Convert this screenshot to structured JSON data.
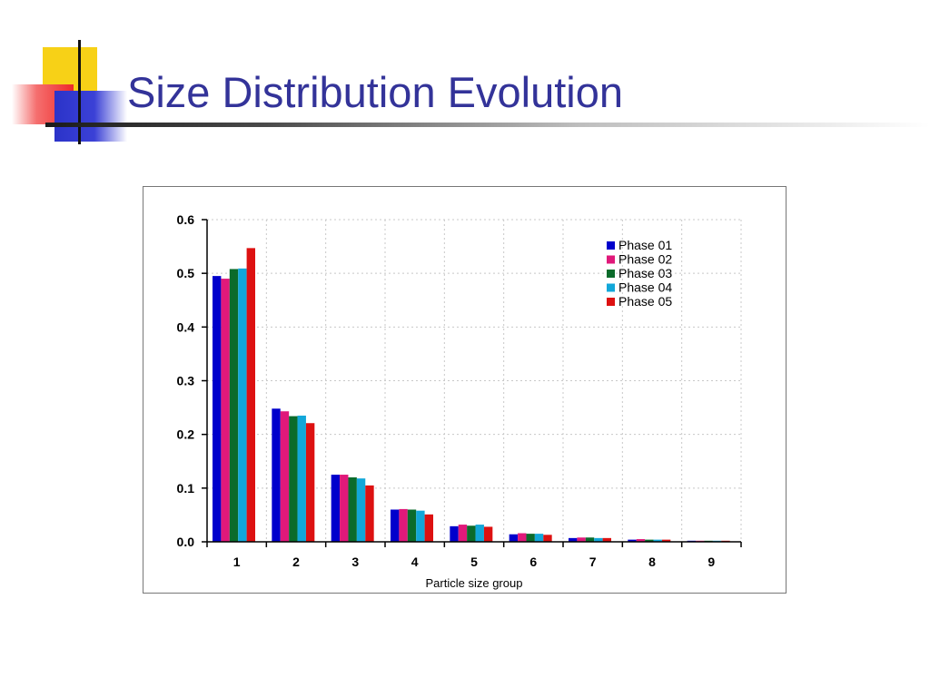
{
  "slide": {
    "title": "Size Distribution Evolution"
  },
  "chart_data": {
    "type": "bar",
    "title": "",
    "xlabel": "Particle size group",
    "ylabel": "",
    "categories": [
      "1",
      "2",
      "3",
      "4",
      "5",
      "6",
      "7",
      "8",
      "9"
    ],
    "ylim": [
      0,
      0.6
    ],
    "yticks": [
      "0.0",
      "0.1",
      "0.2",
      "0.3",
      "0.4",
      "0.5",
      "0.6"
    ],
    "grid": true,
    "legend_position": "top-right",
    "series": [
      {
        "name": "Phase 01",
        "color": "#0000cc",
        "values": [
          0.495,
          0.248,
          0.125,
          0.06,
          0.029,
          0.014,
          0.007,
          0.004,
          0.002
        ]
      },
      {
        "name": "Phase 02",
        "color": "#e0197a",
        "values": [
          0.49,
          0.243,
          0.125,
          0.061,
          0.032,
          0.016,
          0.008,
          0.005,
          0.002
        ]
      },
      {
        "name": "Phase 03",
        "color": "#0b6b2b",
        "values": [
          0.508,
          0.234,
          0.12,
          0.06,
          0.03,
          0.015,
          0.008,
          0.004,
          0.002
        ]
      },
      {
        "name": "Phase 04",
        "color": "#12a7d9",
        "values": [
          0.509,
          0.235,
          0.118,
          0.058,
          0.032,
          0.015,
          0.007,
          0.004,
          0.002
        ]
      },
      {
        "name": "Phase 05",
        "color": "#dd1111",
        "values": [
          0.547,
          0.221,
          0.105,
          0.051,
          0.028,
          0.013,
          0.007,
          0.004,
          0.002
        ]
      }
    ]
  }
}
